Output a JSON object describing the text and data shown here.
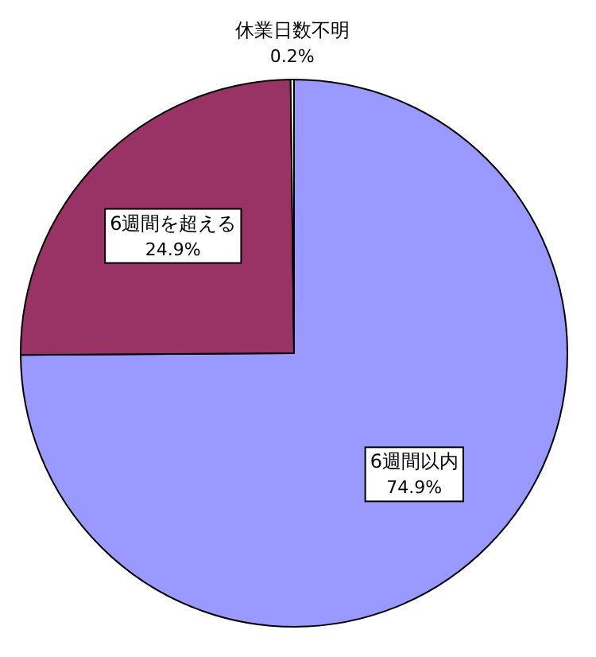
{
  "chart_data": {
    "type": "pie",
    "categories": [
      "6週間以内",
      "6週間を超える",
      "休業日数不明"
    ],
    "values": [
      74.9,
      24.9,
      0.2
    ],
    "colors": [
      "#9999ff",
      "#993366",
      "#ffffcc"
    ],
    "value_labels": [
      "74.9%",
      "24.9%",
      "0.2%"
    ]
  }
}
